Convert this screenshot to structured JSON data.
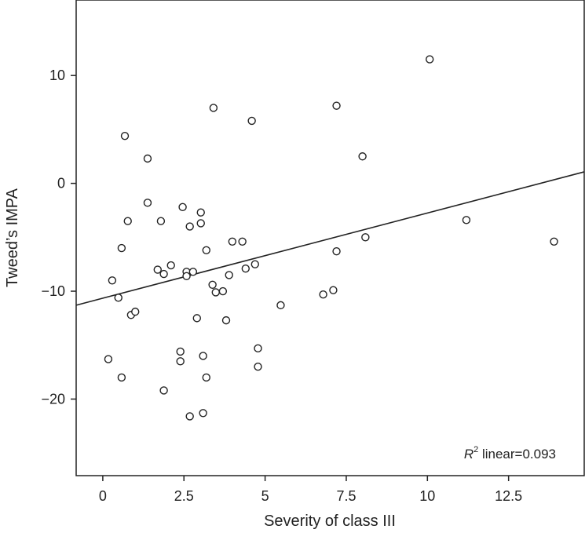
{
  "chart_data": {
    "type": "scatter",
    "title": "",
    "xlabel": "Severity of class III",
    "ylabel": "Tweed’s IMPA",
    "xlim": [
      -0.82,
      14.83
    ],
    "ylim": [
      -27.1,
      17.0
    ],
    "xticks": [
      0,
      2.5,
      5,
      7.5,
      10,
      12.5
    ],
    "xtick_labels": [
      "0",
      "2.5",
      "5",
      "7.5",
      "10",
      "12.5"
    ],
    "yticks": [
      10,
      0,
      -10,
      -20
    ],
    "ytick_labels": [
      "10",
      "0",
      "−10",
      "−20"
    ],
    "grid": false,
    "marker": "open-circle",
    "points": [
      [
        10.07,
        11.5
      ],
      [
        3.41,
        7.0
      ],
      [
        7.2,
        7.2
      ],
      [
        4.59,
        5.8
      ],
      [
        0.68,
        4.4
      ],
      [
        8.0,
        2.5
      ],
      [
        1.38,
        2.3
      ],
      [
        1.38,
        -1.8
      ],
      [
        0.77,
        -3.5
      ],
      [
        1.79,
        -3.5
      ],
      [
        2.46,
        -2.2
      ],
      [
        3.02,
        -2.7
      ],
      [
        3.02,
        -3.7
      ],
      [
        2.68,
        -4.0
      ],
      [
        11.2,
        -3.4
      ],
      [
        13.9,
        -5.4
      ],
      [
        8.09,
        -5.0
      ],
      [
        7.2,
        -6.3
      ],
      [
        3.99,
        -5.4
      ],
      [
        4.3,
        -5.4
      ],
      [
        0.58,
        -6.0
      ],
      [
        3.19,
        -6.2
      ],
      [
        1.69,
        -8.0
      ],
      [
        1.88,
        -8.4
      ],
      [
        2.1,
        -7.6
      ],
      [
        2.58,
        -8.2
      ],
      [
        2.58,
        -8.6
      ],
      [
        2.78,
        -8.2
      ],
      [
        4.69,
        -7.5
      ],
      [
        4.4,
        -7.9
      ],
      [
        3.89,
        -8.5
      ],
      [
        3.38,
        -9.4
      ],
      [
        3.48,
        -10.1
      ],
      [
        3.7,
        -10.0
      ],
      [
        0.29,
        -9.0
      ],
      [
        0.48,
        -10.6
      ],
      [
        0.87,
        -12.2
      ],
      [
        1.0,
        -11.9
      ],
      [
        2.9,
        -12.5
      ],
      [
        3.8,
        -12.7
      ],
      [
        5.48,
        -11.3
      ],
      [
        6.79,
        -10.3
      ],
      [
        7.1,
        -9.9
      ],
      [
        4.78,
        -15.3
      ],
      [
        4.78,
        -17.0
      ],
      [
        2.39,
        -15.6
      ],
      [
        2.39,
        -16.5
      ],
      [
        3.09,
        -16.0
      ],
      [
        3.19,
        -18.0
      ],
      [
        0.17,
        -16.3
      ],
      [
        0.58,
        -18.0
      ],
      [
        1.88,
        -19.2
      ],
      [
        3.09,
        -21.3
      ],
      [
        2.68,
        -21.6
      ]
    ],
    "fit_line": {
      "type": "linear",
      "slope": 0.79,
      "intercept": -10.65
    },
    "annotation": {
      "r2_symbol": "R",
      "r2_sup": "2",
      "r2_text": " linear=0.093"
    }
  }
}
